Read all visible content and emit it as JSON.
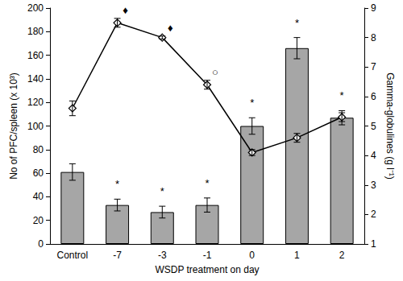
{
  "chart_data": {
    "type": "bar",
    "x_label": "WSDP treatment on day",
    "y_label": "No of PFC/spleen (x 10³)",
    "y2_label": "Gamma-globulines (g l⁻¹)",
    "categories": [
      "Control",
      "-7",
      "-3",
      "-1",
      "0",
      "1",
      "2"
    ],
    "ylim": [
      0,
      200
    ],
    "yticks": [
      0,
      20,
      40,
      60,
      80,
      100,
      120,
      140,
      160,
      180,
      200
    ],
    "y2lim": [
      1,
      9
    ],
    "y2ticks": [
      1,
      2,
      3,
      4,
      5,
      6,
      7,
      8,
      9
    ],
    "grid": false,
    "series": [
      {
        "type": "bar",
        "color": "#a6a6a6",
        "values": [
          61,
          33,
          27,
          33,
          100,
          166,
          107
        ],
        "errors": [
          7,
          5,
          5,
          6,
          7,
          9,
          6
        ],
        "annotations": [
          {
            "category": "-7",
            "text": "*"
          },
          {
            "category": "-3",
            "text": "*"
          },
          {
            "category": "-1",
            "text": "*"
          },
          {
            "category": "0",
            "text": "*"
          },
          {
            "category": "1",
            "text": "*"
          },
          {
            "category": "2",
            "text": "*"
          }
        ]
      },
      {
        "type": "line",
        "axis": "y2",
        "color": "#000000",
        "marker": "diamond",
        "values": [
          5.6,
          8.5,
          8.0,
          6.4,
          4.1,
          4.6,
          5.3
        ],
        "errors": [
          0.25,
          0.15,
          0.05,
          0.15,
          0.1,
          0.15,
          0.15
        ],
        "annotations": [
          {
            "category": "-7",
            "text": "♦"
          },
          {
            "category": "-3",
            "text": "♦"
          },
          {
            "category": "-1",
            "text": "○"
          }
        ]
      }
    ]
  }
}
